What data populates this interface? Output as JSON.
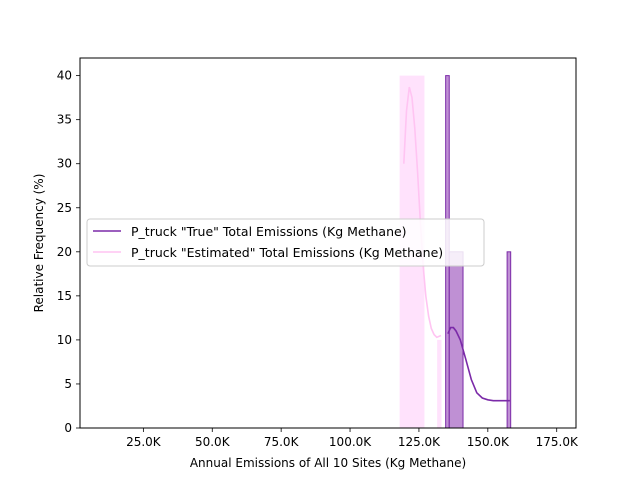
{
  "chart_data": {
    "type": "histogram",
    "xlabel": "Annual Emissions of All 10 Sites (Kg Methane)",
    "ylabel": "Relative Frequency (%)",
    "xlim": [
      2000,
      182000
    ],
    "ylim": [
      0,
      42
    ],
    "x_ticks": [
      25000,
      50000,
      75000,
      100000,
      125000,
      150000,
      175000
    ],
    "x_tick_labels": [
      "25.0K",
      "50.0K",
      "75.0K",
      "100.0K",
      "125.0K",
      "150.0K",
      "175.0K"
    ],
    "y_ticks": [
      0,
      5,
      10,
      15,
      20,
      25,
      30,
      35,
      40
    ],
    "y_tick_labels": [
      "0",
      "5",
      "10",
      "15",
      "20",
      "25",
      "30",
      "35",
      "40"
    ],
    "grid": false,
    "legend_position": "center-left",
    "series": [
      {
        "name": "P_truck \"True\" Total Emissions (Kg Methane)",
        "color": "#7b2aa8",
        "fill": "#b884cf",
        "bins": [
          {
            "x0": 134700,
            "x1": 136000,
            "value": 40
          },
          {
            "x0": 136000,
            "x1": 141000,
            "value": 20
          },
          {
            "x0": 141000,
            "x1": 157000,
            "value": 0
          },
          {
            "x0": 157000,
            "x1": 158300,
            "value": 20
          }
        ],
        "kde": [
          [
            135500,
            10.7
          ],
          [
            136500,
            11.4
          ],
          [
            137500,
            11.4
          ],
          [
            138500,
            11.0
          ],
          [
            140000,
            10.0
          ],
          [
            142000,
            7.8
          ],
          [
            144000,
            5.5
          ],
          [
            146000,
            4.0
          ],
          [
            148000,
            3.4
          ],
          [
            150000,
            3.2
          ],
          [
            152000,
            3.1
          ],
          [
            154000,
            3.1
          ],
          [
            158000,
            3.1
          ]
        ]
      },
      {
        "name": "P_truck \"Estimated\" Total Emissions (Kg Methane)",
        "color": "#ffc4f2",
        "fill": "#ffd8fb",
        "bins": [
          {
            "x0": 118000,
            "x1": 127000,
            "value": 40
          },
          {
            "x0": 127000,
            "x1": 131600,
            "value": 0
          },
          {
            "x0": 131600,
            "x1": 133200,
            "value": 10
          }
        ],
        "kde": [
          [
            119500,
            30
          ],
          [
            120500,
            36
          ],
          [
            121500,
            38.7
          ],
          [
            122500,
            37.5
          ],
          [
            123500,
            34
          ],
          [
            124500,
            29
          ],
          [
            125500,
            23.5
          ],
          [
            126500,
            18.5
          ],
          [
            127500,
            15
          ],
          [
            128500,
            12.7
          ],
          [
            129500,
            11.3
          ],
          [
            130500,
            10.6
          ],
          [
            131500,
            10.3
          ],
          [
            133000,
            10.5
          ]
        ]
      }
    ]
  }
}
